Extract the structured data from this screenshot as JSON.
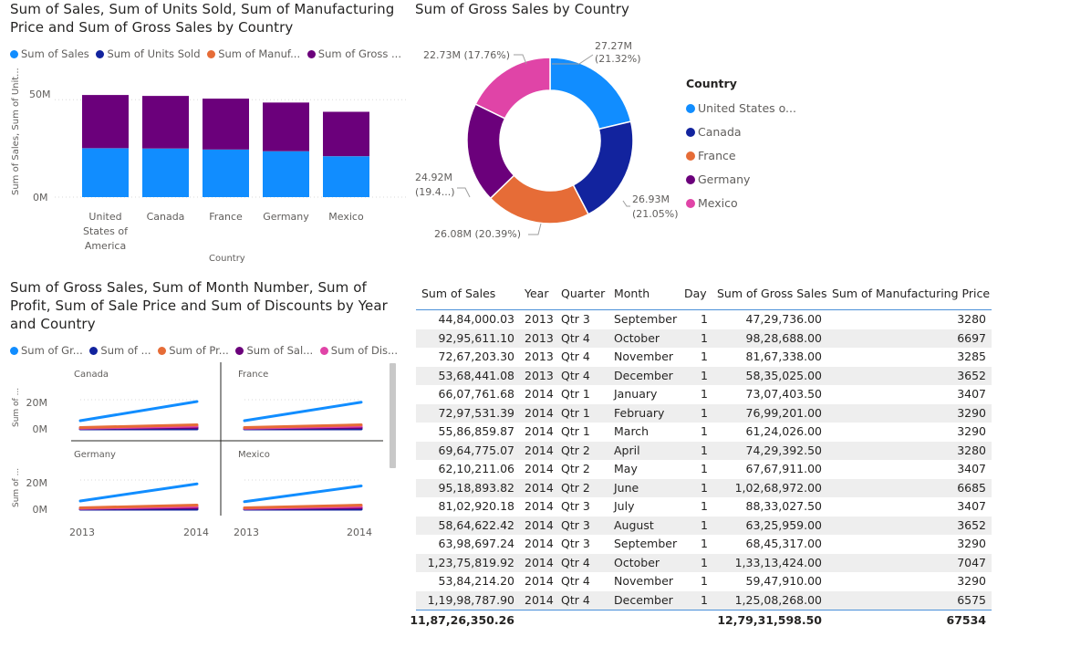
{
  "colors": {
    "blue": "#118dff",
    "navy": "#12239e",
    "orange": "#e66c37",
    "purple": "#6b007b",
    "pink": "#e044a7"
  },
  "bar_chart": {
    "title": "Sum of Sales, Sum of Units Sold, Sum of Manufacturing Price and Sum of Gross Sales by Country",
    "legend": [
      "Sum of  Sales",
      "Sum of Units Sold",
      "Sum of Manuf...",
      "Sum of Gross ..."
    ],
    "ylabel": "Sum of Sales, Sum of Unit...",
    "xlabel": "Country",
    "yticks": [
      "50M",
      "0M"
    ],
    "categories": [
      "United States of America",
      "Canada",
      "France",
      "Germany",
      "Mexico"
    ]
  },
  "donut": {
    "title": "Sum of Gross Sales by Country",
    "legend_title": "Country",
    "legend": [
      "United States o...",
      "Canada",
      "France",
      "Germany",
      "Mexico"
    ],
    "labels": [
      "27.27M (21.32%)",
      "26.93M (21.05%)",
      "26.08M (20.39%)",
      "24.92M (19.4...)",
      "22.73M (17.76%)"
    ]
  },
  "small_multiples": {
    "title": "Sum of Gross Sales, Sum of Month Number, Sum of Profit, Sum of Sale Price and Sum of Discounts by Year and Country",
    "legend": [
      "Sum of Gr...",
      "Sum of ...",
      "Sum of Pr...",
      "Sum of Sal...",
      "Sum of Dis..."
    ],
    "panels": [
      "Canada",
      "France",
      "Germany",
      "Mexico"
    ],
    "ylabel": "Sum of ...",
    "yticks": [
      "20M",
      "0M"
    ],
    "xticks": [
      "2013",
      "2014"
    ]
  },
  "chart_data": [
    {
      "type": "bar",
      "title": "Sum of Sales, Sum of Units Sold, Sum of Manufacturing Price and Sum of Gross Sales by Country",
      "categories": [
        "United States of America",
        "Canada",
        "France",
        "Germany",
        "Mexico"
      ],
      "series": [
        {
          "name": "Sum of  Sales",
          "values": [
            25.03,
            24.89,
            24.35,
            23.51,
            20.95
          ]
        },
        {
          "name": "Sum of Units Sold",
          "values": [
            0.07,
            0.07,
            0.07,
            0.07,
            0.07
          ]
        },
        {
          "name": "Sum of Manuf...",
          "values": [
            0.03,
            0.03,
            0.03,
            0.03,
            0.03
          ]
        },
        {
          "name": "Sum of Gross ...",
          "values": [
            27.27,
            26.93,
            26.08,
            24.92,
            22.73
          ]
        }
      ],
      "xlabel": "Country",
      "ylabel": "Sum of Sales, Sum of Unit...",
      "ylim": [
        0,
        59
      ]
    },
    {
      "type": "pie",
      "title": "Sum of Gross Sales by Country",
      "categories": [
        "United States o...",
        "Canada",
        "France",
        "Germany",
        "Mexico"
      ],
      "values": [
        27.27,
        26.93,
        26.08,
        24.92,
        22.73
      ]
    },
    {
      "type": "line",
      "title": "Sum of Gross Sales, Sum of Month Number, Sum of Profit, Sum of Sale Price and Sum of Discounts by Year and Country",
      "x": [
        "2013",
        "2014"
      ],
      "ylim": [
        0,
        30
      ],
      "panels": [
        {
          "name": "Canada",
          "series": [
            {
              "name": "Sum of Gr...",
              "values": [
                6,
                20
              ]
            },
            {
              "name": "Sum of ...",
              "values": [
                0,
                0
              ]
            },
            {
              "name": "Sum of Pr...",
              "values": [
                1,
                3
              ]
            },
            {
              "name": "Sum of Sal...",
              "values": [
                0.5,
                1
              ]
            },
            {
              "name": "Sum of Dis...",
              "values": [
                0.5,
                2
              ]
            }
          ]
        },
        {
          "name": "France",
          "series": [
            {
              "name": "Sum of Gr...",
              "values": [
                6,
                19.5
              ]
            },
            {
              "name": "Sum of ...",
              "values": [
                0,
                0
              ]
            },
            {
              "name": "Sum of Pr...",
              "values": [
                1,
                3
              ]
            },
            {
              "name": "Sum of Sal...",
              "values": [
                0.5,
                1
              ]
            },
            {
              "name": "Sum of Dis...",
              "values": [
                0.5,
                2
              ]
            }
          ]
        },
        {
          "name": "Germany",
          "series": [
            {
              "name": "Sum of Gr...",
              "values": [
                6,
                18.5
              ]
            },
            {
              "name": "Sum of ...",
              "values": [
                0,
                0
              ]
            },
            {
              "name": "Sum of Pr...",
              "values": [
                1,
                3
              ]
            },
            {
              "name": "Sum of Sal...",
              "values": [
                0.5,
                1
              ]
            },
            {
              "name": "Sum of Dis...",
              "values": [
                0.5,
                2
              ]
            }
          ]
        },
        {
          "name": "Mexico",
          "series": [
            {
              "name": "Sum of Gr...",
              "values": [
                5.5,
                17
              ]
            },
            {
              "name": "Sum of ...",
              "values": [
                0,
                0
              ]
            },
            {
              "name": "Sum of Pr...",
              "values": [
                1,
                3
              ]
            },
            {
              "name": "Sum of Sal...",
              "values": [
                0.5,
                1
              ]
            },
            {
              "name": "Sum of Dis...",
              "values": [
                0.5,
                2
              ]
            }
          ]
        }
      ]
    }
  ],
  "table": {
    "headers": [
      "Sum of Sales",
      "Year",
      "Quarter",
      "Month",
      "Day",
      "Sum of Gross Sales",
      "Sum of Manufacturing Price"
    ],
    "rows": [
      [
        "44,84,000.03",
        "2013",
        "Qtr 3",
        "September",
        "1",
        "47,29,736.00",
        "3280"
      ],
      [
        "92,95,611.10",
        "2013",
        "Qtr 4",
        "October",
        "1",
        "98,28,688.00",
        "6697"
      ],
      [
        "72,67,203.30",
        "2013",
        "Qtr 4",
        "November",
        "1",
        "81,67,338.00",
        "3285"
      ],
      [
        "53,68,441.08",
        "2013",
        "Qtr 4",
        "December",
        "1",
        "58,35,025.00",
        "3652"
      ],
      [
        "66,07,761.68",
        "2014",
        "Qtr 1",
        "January",
        "1",
        "73,07,403.50",
        "3407"
      ],
      [
        "72,97,531.39",
        "2014",
        "Qtr 1",
        "February",
        "1",
        "76,99,201.00",
        "3290"
      ],
      [
        "55,86,859.87",
        "2014",
        "Qtr 1",
        "March",
        "1",
        "61,24,026.00",
        "3290"
      ],
      [
        "69,64,775.07",
        "2014",
        "Qtr 2",
        "April",
        "1",
        "74,29,392.50",
        "3280"
      ],
      [
        "62,10,211.06",
        "2014",
        "Qtr 2",
        "May",
        "1",
        "67,67,911.00",
        "3407"
      ],
      [
        "95,18,893.82",
        "2014",
        "Qtr 2",
        "June",
        "1",
        "1,02,68,972.00",
        "6685"
      ],
      [
        "81,02,920.18",
        "2014",
        "Qtr 3",
        "July",
        "1",
        "88,33,027.50",
        "3407"
      ],
      [
        "58,64,622.42",
        "2014",
        "Qtr 3",
        "August",
        "1",
        "63,25,959.00",
        "3652"
      ],
      [
        "63,98,697.24",
        "2014",
        "Qtr 3",
        "September",
        "1",
        "68,45,317.00",
        "3290"
      ],
      [
        "1,23,75,819.92",
        "2014",
        "Qtr 4",
        "October",
        "1",
        "1,33,13,424.00",
        "7047"
      ],
      [
        "53,84,214.20",
        "2014",
        "Qtr 4",
        "November",
        "1",
        "59,47,910.00",
        "3290"
      ],
      [
        "1,19,98,787.90",
        "2014",
        "Qtr 4",
        "December",
        "1",
        "1,25,08,268.00",
        "6575"
      ]
    ],
    "totals": [
      "11,87,26,350.26",
      "12,79,31,598.50",
      "67534"
    ]
  }
}
